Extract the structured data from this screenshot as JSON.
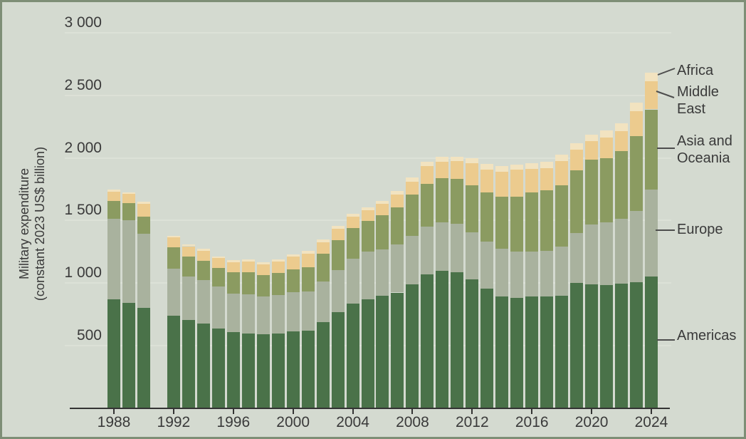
{
  "chart_data": {
    "type": "bar",
    "stacked": true,
    "title": "",
    "ylabel_line1": "Military expenditure",
    "ylabel_line2": "(constant 2023 US$ billion)",
    "xlabel": "",
    "ylim": [
      0,
      3000
    ],
    "grid": true,
    "legend_position": "right",
    "y_ticks": [
      {
        "label": "3 000",
        "value": 3000
      },
      {
        "label": "2 500",
        "value": 2500
      },
      {
        "label": "2 000",
        "value": 2000
      },
      {
        "label": "1 500",
        "value": 1500
      },
      {
        "label": "1 000",
        "value": 1000
      },
      {
        "label": "500",
        "value": 500
      }
    ],
    "x_ticks": [
      1988,
      1992,
      1996,
      2000,
      2004,
      2008,
      2012,
      2016,
      2020,
      2024
    ],
    "years": [
      1988,
      1989,
      1990,
      1992,
      1993,
      1994,
      1995,
      1996,
      1997,
      1998,
      1999,
      2000,
      2001,
      2002,
      2003,
      2004,
      2005,
      2006,
      2007,
      2008,
      2009,
      2010,
      2011,
      2012,
      2013,
      2014,
      2015,
      2016,
      2017,
      2018,
      2019,
      2020,
      2021,
      2022,
      2023,
      2024
    ],
    "note_gap_year": 1991,
    "series": [
      {
        "name": "Americas",
        "color": "#4a7249",
        "values": [
          870,
          845,
          805,
          740,
          705,
          675,
          635,
          610,
          595,
          592,
          598,
          612,
          618,
          690,
          770,
          835,
          873,
          900,
          925,
          990,
          1070,
          1100,
          1090,
          1028,
          958,
          896,
          883,
          892,
          896,
          902,
          1002,
          991,
          987,
          996,
          1010,
          1053
        ]
      },
      {
        "name": "Europe",
        "color": "#a9b29e",
        "values": [
          645,
          660,
          592,
          378,
          348,
          350,
          338,
          308,
          315,
          300,
          306,
          318,
          316,
          326,
          334,
          362,
          378,
          372,
          386,
          390,
          380,
          386,
          385,
          380,
          374,
          379,
          369,
          362,
          360,
          388,
          400,
          479,
          496,
          517,
          564,
          692
        ]
      },
      {
        "name": "Asia and Oceania",
        "color": "#8b9b61",
        "values": [
          140,
          132,
          136,
          168,
          158,
          152,
          150,
          170,
          178,
          174,
          176,
          182,
          192,
          220,
          238,
          242,
          246,
          270,
          295,
          328,
          342,
          352,
          360,
          375,
          392,
          415,
          438,
          468,
          485,
          490,
          498,
          517,
          517,
          544,
          600,
          643
        ]
      },
      {
        "name": "Middle East",
        "color": "#eccb8e",
        "values": [
          78,
          74,
          102,
          80,
          84,
          82,
          78,
          80,
          86,
          86,
          94,
          98,
          110,
          90,
          92,
          92,
          86,
          90,
          100,
          104,
          142,
          134,
          140,
          175,
          182,
          200,
          215,
          192,
          180,
          195,
          168,
          145,
          164,
          160,
          200,
          224
        ]
      },
      {
        "name": "Africa",
        "color": "#f2e3c0",
        "values": [
          15,
          15,
          16,
          14,
          15,
          15,
          14,
          14,
          14,
          15,
          17,
          18,
          20,
          21,
          22,
          24,
          25,
          27,
          28,
          31,
          34,
          35,
          37,
          38,
          44,
          48,
          44,
          42,
          47,
          49,
          50,
          52,
          54,
          62,
          68,
          70
        ]
      }
    ],
    "legend_labels": [
      "Africa",
      "Middle\nEast",
      "Asia and\nOceania",
      "Europe",
      "Americas"
    ]
  },
  "colors": {
    "background": "#d4dad0",
    "frame_border": "#7e8e76",
    "axis": "#333333",
    "gridline": "#dce1d7",
    "text": "#3a3a3a",
    "leader_line": "#4d4d4d"
  }
}
